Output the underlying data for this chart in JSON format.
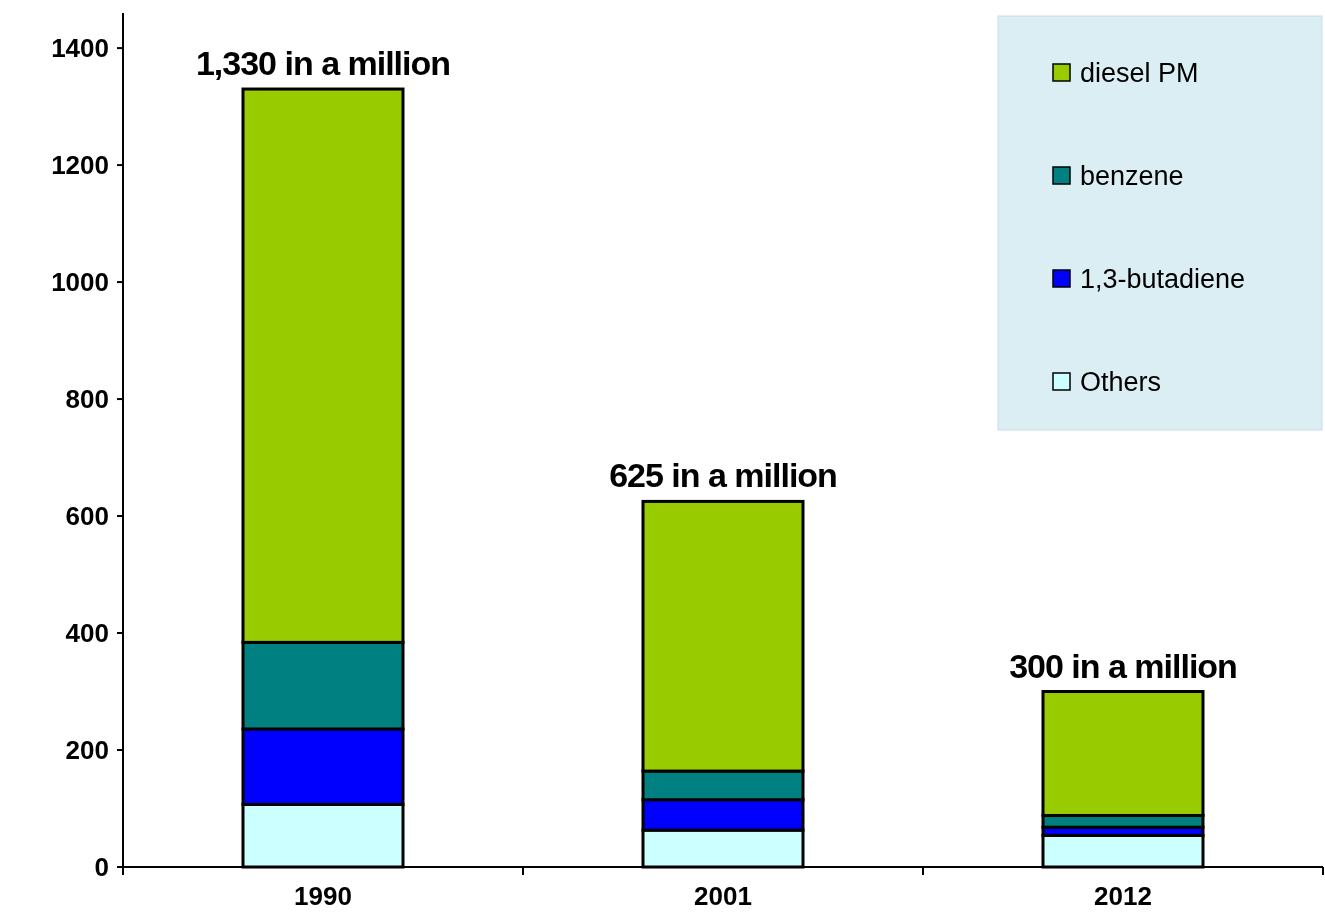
{
  "chart_data": {
    "type": "bar",
    "stacked": true,
    "categories": [
      "1990",
      "2001",
      "2012"
    ],
    "series": [
      {
        "name": "Others",
        "color": "#ccffff",
        "values": [
          107,
          63,
          54
        ]
      },
      {
        "name": "1,3-butadiene",
        "color": "#0000ff",
        "values": [
          129,
          52,
          14
        ]
      },
      {
        "name": "benzene",
        "color": "#008080",
        "values": [
          148,
          49,
          20
        ]
      },
      {
        "name": "diesel PM",
        "color": "#99cc00",
        "values": [
          946,
          461,
          212
        ]
      }
    ],
    "totals": [
      "1,330 in a million",
      "625 in a million",
      "300 in a million"
    ],
    "ylim": [
      0,
      1460
    ],
    "yticks": [
      0,
      200,
      400,
      600,
      800,
      1000,
      1200,
      1400
    ],
    "grid": false,
    "legend": "top right"
  }
}
